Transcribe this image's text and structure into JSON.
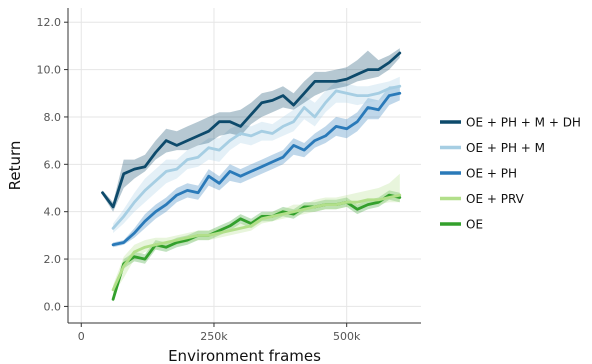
{
  "chart_data": {
    "type": "line",
    "xlabel": "Environment frames",
    "ylabel": "Return",
    "xlim": [
      -25000,
      640000
    ],
    "ylim": [
      -0.7,
      12.6
    ],
    "x_ticks": [
      0,
      250000,
      500000
    ],
    "x_tick_labels": [
      "0",
      "250k",
      "500k"
    ],
    "y_ticks": [
      0,
      2,
      4,
      6,
      8,
      10,
      12
    ],
    "y_tick_labels": [
      "0.0",
      "2.0",
      "4.0",
      "6.0",
      "8.0",
      "10.0",
      "12.0"
    ],
    "grid": true,
    "legend_position": "right",
    "series": [
      {
        "name": "OE + PH + M + DH",
        "color": "#0d4a6b",
        "x": [
          40000,
          60000,
          80000,
          100000,
          120000,
          140000,
          160000,
          180000,
          200000,
          220000,
          240000,
          260000,
          280000,
          300000,
          320000,
          340000,
          360000,
          380000,
          400000,
          420000,
          440000,
          460000,
          480000,
          500000,
          520000,
          540000,
          560000,
          580000,
          600000
        ],
        "values": [
          4.8,
          4.2,
          5.6,
          5.8,
          5.9,
          6.5,
          7.0,
          6.8,
          7.0,
          7.2,
          7.4,
          7.8,
          7.8,
          7.6,
          8.1,
          8.6,
          8.7,
          8.9,
          8.5,
          9.0,
          9.5,
          9.5,
          9.5,
          9.6,
          9.8,
          10.0,
          10.0,
          10.3,
          10.7
        ],
        "lower": [
          4.7,
          4.0,
          5.0,
          5.4,
          5.7,
          6.2,
          6.5,
          6.6,
          6.6,
          6.8,
          6.9,
          7.2,
          7.3,
          7.2,
          7.7,
          8.0,
          8.2,
          8.4,
          8.3,
          8.6,
          8.9,
          9.1,
          9.2,
          9.3,
          9.5,
          9.6,
          9.7,
          10.0,
          10.5
        ],
        "upper": [
          4.9,
          4.4,
          6.2,
          6.2,
          6.4,
          7.0,
          7.5,
          7.4,
          7.6,
          7.8,
          8.0,
          8.2,
          8.2,
          8.3,
          8.6,
          9.0,
          9.1,
          9.3,
          9.0,
          9.5,
          9.9,
          9.9,
          10.0,
          10.1,
          10.4,
          10.8,
          10.4,
          10.6,
          10.9
        ]
      },
      {
        "name": "OE + PH + M",
        "color": "#a6cee3",
        "x": [
          60000,
          80000,
          100000,
          120000,
          140000,
          160000,
          180000,
          200000,
          220000,
          240000,
          260000,
          280000,
          300000,
          320000,
          340000,
          360000,
          380000,
          400000,
          420000,
          440000,
          460000,
          480000,
          500000,
          520000,
          540000,
          560000,
          580000,
          600000
        ],
        "values": [
          3.3,
          3.8,
          4.4,
          4.9,
          5.3,
          5.7,
          5.8,
          6.2,
          6.3,
          6.7,
          6.6,
          7.0,
          7.3,
          7.2,
          7.4,
          7.3,
          7.6,
          7.8,
          8.4,
          8.0,
          8.6,
          9.1,
          9.0,
          8.9,
          8.9,
          9.0,
          9.2,
          9.3
        ],
        "lower": [
          3.1,
          3.5,
          4.0,
          4.4,
          4.8,
          5.2,
          5.4,
          5.8,
          5.9,
          6.2,
          6.1,
          6.6,
          6.9,
          6.8,
          7.0,
          7.0,
          7.2,
          7.4,
          7.9,
          7.6,
          8.2,
          8.6,
          8.6,
          8.5,
          8.6,
          8.7,
          8.9,
          9.0
        ],
        "upper": [
          3.5,
          4.1,
          4.8,
          5.4,
          5.8,
          6.2,
          6.2,
          6.6,
          6.8,
          7.1,
          7.1,
          7.5,
          7.7,
          7.6,
          7.8,
          7.7,
          8.0,
          8.3,
          8.9,
          8.6,
          9.1,
          9.5,
          9.4,
          9.3,
          9.3,
          9.4,
          9.5,
          9.7
        ]
      },
      {
        "name": "OE + PH",
        "color": "#2a7ab9",
        "x": [
          60000,
          80000,
          100000,
          120000,
          140000,
          160000,
          180000,
          200000,
          220000,
          240000,
          260000,
          280000,
          300000,
          320000,
          340000,
          360000,
          380000,
          400000,
          420000,
          440000,
          460000,
          480000,
          500000,
          520000,
          540000,
          560000,
          580000,
          600000
        ],
        "values": [
          2.6,
          2.7,
          3.1,
          3.6,
          4.0,
          4.3,
          4.7,
          4.9,
          4.8,
          5.5,
          5.2,
          5.7,
          5.5,
          5.7,
          5.9,
          6.1,
          6.3,
          6.8,
          6.6,
          7.0,
          7.2,
          7.6,
          7.5,
          7.8,
          8.4,
          8.3,
          8.9,
          9.0
        ],
        "lower": [
          2.5,
          2.6,
          2.9,
          3.3,
          3.7,
          4.0,
          4.4,
          4.6,
          4.5,
          5.1,
          4.9,
          5.3,
          5.2,
          5.4,
          5.6,
          5.8,
          6.0,
          6.4,
          6.3,
          6.7,
          6.9,
          7.2,
          7.1,
          7.4,
          7.9,
          7.9,
          8.5,
          8.7
        ],
        "upper": [
          2.7,
          2.8,
          3.3,
          3.9,
          4.3,
          4.6,
          5.0,
          5.2,
          5.1,
          5.8,
          5.5,
          6.0,
          5.8,
          6.0,
          6.2,
          6.4,
          6.6,
          7.1,
          6.9,
          7.3,
          7.6,
          8.0,
          7.9,
          8.2,
          8.8,
          8.7,
          9.3,
          9.3
        ]
      },
      {
        "name": "OE + PRV",
        "color": "#b2df8a",
        "x": [
          60000,
          80000,
          100000,
          120000,
          140000,
          160000,
          180000,
          200000,
          220000,
          240000,
          260000,
          280000,
          300000,
          320000,
          340000,
          360000,
          380000,
          400000,
          420000,
          440000,
          460000,
          480000,
          500000,
          520000,
          540000,
          560000,
          580000,
          600000
        ],
        "values": [
          0.7,
          1.7,
          2.3,
          2.5,
          2.6,
          2.7,
          2.8,
          2.9,
          3.0,
          3.0,
          3.1,
          3.2,
          3.3,
          3.4,
          3.7,
          3.8,
          3.9,
          4.0,
          4.1,
          4.2,
          4.3,
          4.3,
          4.4,
          4.4,
          4.5,
          4.5,
          4.6,
          4.7
        ],
        "lower": [
          0.5,
          1.2,
          2.0,
          2.3,
          2.4,
          2.5,
          2.6,
          2.7,
          2.8,
          2.8,
          2.9,
          3.0,
          3.1,
          3.2,
          3.5,
          3.6,
          3.7,
          3.8,
          3.9,
          4.0,
          4.1,
          4.1,
          4.2,
          4.2,
          4.3,
          4.3,
          4.4,
          4.4
        ],
        "upper": [
          0.9,
          2.1,
          2.6,
          2.8,
          2.9,
          2.9,
          3.0,
          3.1,
          3.2,
          3.2,
          3.3,
          3.4,
          3.5,
          3.6,
          3.9,
          4.0,
          4.1,
          4.3,
          4.3,
          4.5,
          4.6,
          4.6,
          4.7,
          4.8,
          4.9,
          5.0,
          5.2,
          5.6
        ]
      },
      {
        "name": "OE",
        "color": "#33a02c",
        "x": [
          60000,
          80000,
          100000,
          120000,
          140000,
          160000,
          180000,
          200000,
          220000,
          240000,
          260000,
          280000,
          300000,
          320000,
          340000,
          360000,
          380000,
          400000,
          420000,
          440000,
          460000,
          480000,
          500000,
          520000,
          540000,
          560000,
          580000,
          600000
        ],
        "values": [
          0.3,
          1.8,
          2.1,
          2.0,
          2.6,
          2.5,
          2.7,
          2.8,
          3.0,
          3.0,
          3.2,
          3.4,
          3.7,
          3.5,
          3.8,
          3.8,
          4.0,
          3.9,
          4.2,
          4.2,
          4.3,
          4.3,
          4.4,
          4.1,
          4.3,
          4.4,
          4.7,
          4.6
        ],
        "lower": [
          0.2,
          1.6,
          1.9,
          1.8,
          2.4,
          2.3,
          2.5,
          2.6,
          2.8,
          2.8,
          3.0,
          3.2,
          3.5,
          3.3,
          3.6,
          3.6,
          3.8,
          3.7,
          4.0,
          4.0,
          4.1,
          4.1,
          4.2,
          3.9,
          4.1,
          4.2,
          4.5,
          4.4
        ],
        "upper": [
          0.4,
          2.0,
          2.3,
          2.2,
          2.8,
          2.7,
          2.9,
          3.0,
          3.2,
          3.2,
          3.4,
          3.6,
          3.9,
          3.7,
          4.0,
          4.0,
          4.2,
          4.1,
          4.4,
          4.4,
          4.5,
          4.5,
          4.6,
          4.3,
          4.5,
          4.6,
          4.9,
          4.8
        ]
      }
    ]
  }
}
